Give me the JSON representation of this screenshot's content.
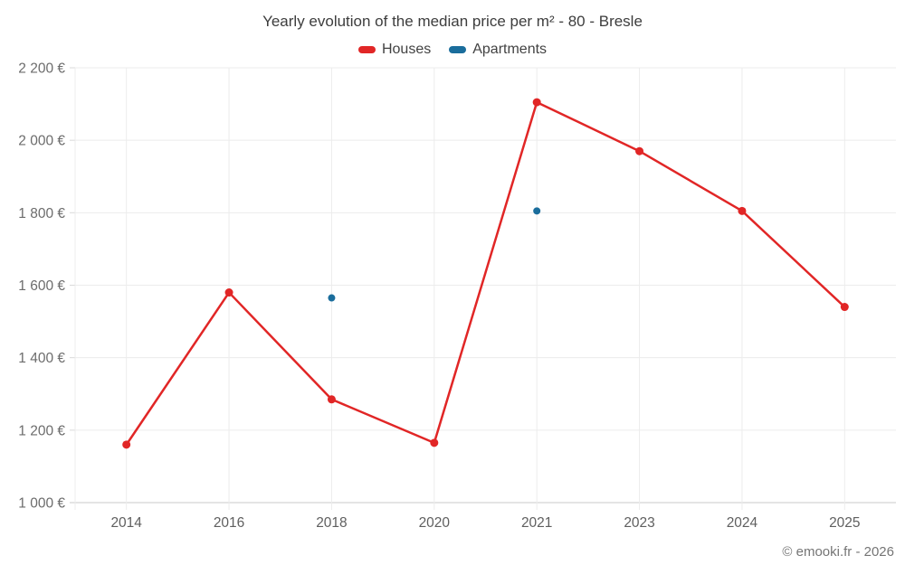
{
  "page": {
    "attribution": "© emooki.fr - 2026"
  },
  "legend": {
    "items": [
      {
        "label": "Houses",
        "color": "#e12626"
      },
      {
        "label": "Apartments",
        "color": "#1a6d9c"
      }
    ]
  },
  "chart_data": {
    "type": "line",
    "title": "Yearly evolution of the median price per m² - 80 - Bresle",
    "categories": [
      "2014",
      "2016",
      "2018",
      "2020",
      "2021",
      "2023",
      "2024",
      "2025"
    ],
    "series": [
      {
        "name": "Houses",
        "color": "#e12626",
        "show_line": true,
        "values": [
          1160,
          1580,
          1285,
          1165,
          2105,
          1970,
          1805,
          1540
        ]
      },
      {
        "name": "Apartments",
        "color": "#1a6d9c",
        "show_line": false,
        "values": [
          null,
          null,
          1565,
          null,
          1805,
          null,
          null,
          null
        ]
      }
    ],
    "ylim": [
      1000,
      2200
    ],
    "yticks": [
      1000,
      1200,
      1400,
      1600,
      1800,
      2000,
      2200
    ],
    "ytick_labels": [
      "1 000 €",
      "1 200 €",
      "1 400 €",
      "1 600 €",
      "1 800 €",
      "2 000 €",
      "2 200 €"
    ],
    "grid": true,
    "legend_position": "top",
    "colors": {
      "gridline": "#ececec",
      "axis_line": "#c9c9c9",
      "tick": "#d9d9d9"
    }
  }
}
